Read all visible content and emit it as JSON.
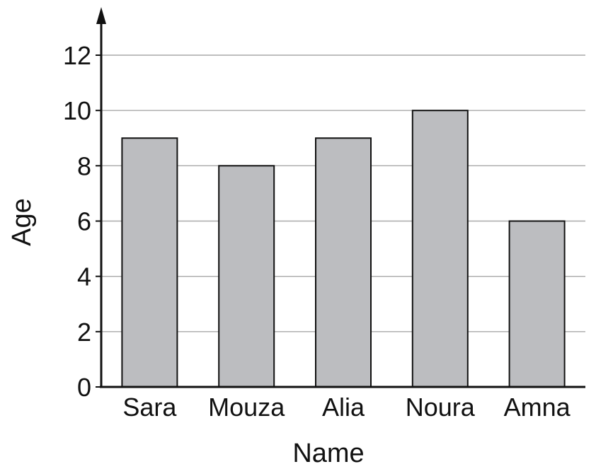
{
  "chart_data": {
    "type": "bar",
    "categories": [
      "Sara",
      "Mouza",
      "Alia",
      "Noura",
      "Amna"
    ],
    "values": [
      9,
      8,
      9,
      10,
      6
    ],
    "title": "",
    "xlabel": "Name",
    "ylabel": "Age",
    "ylim": [
      0,
      12
    ],
    "yticks": [
      0,
      2,
      4,
      6,
      8,
      10,
      12
    ],
    "grid": true,
    "legend": "none",
    "colors": {
      "bar_fill": "#bcbdc0",
      "bar_stroke": "#111111",
      "grid": "#a9a9a9"
    }
  }
}
